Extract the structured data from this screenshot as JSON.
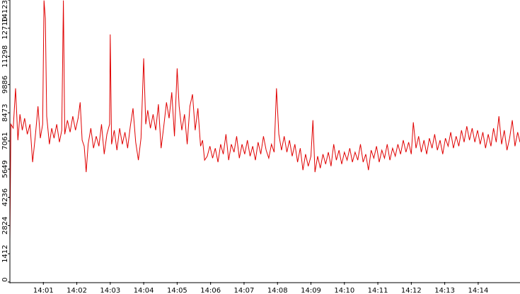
{
  "chart_data": {
    "type": "line",
    "title": "",
    "xlabel": "",
    "ylabel": "",
    "ylim": [
      0,
      14123
    ],
    "y_ticks": [
      0,
      1412,
      2824,
      4236,
      5649,
      7061,
      8473,
      9886,
      11298,
      12710,
      14123
    ],
    "y_tick_labels": [
      "0",
      "1412",
      "2824",
      "4236",
      "5649",
      "7061",
      "8473",
      "9886",
      "11298",
      "12710",
      "14123"
    ],
    "x_tick_labels": [
      "14:01",
      "14:02",
      "14:03",
      "14:04",
      "14:05",
      "14:06",
      "14:07",
      "14:08",
      "14:09",
      "14:10",
      "14:11",
      "14:12",
      "14:13",
      "14:14"
    ],
    "x_range_minutes": [
      0.0,
      15.25
    ],
    "grid": false,
    "series": [
      {
        "color": "#e00000",
        "points": [
          [
            0.0,
            2100
          ],
          [
            0.03,
            7900
          ],
          [
            0.1,
            7700
          ],
          [
            0.17,
            9700
          ],
          [
            0.24,
            7100
          ],
          [
            0.3,
            8400
          ],
          [
            0.37,
            7600
          ],
          [
            0.44,
            8200
          ],
          [
            0.52,
            7400
          ],
          [
            0.6,
            7900
          ],
          [
            0.68,
            6000
          ],
          [
            0.76,
            7300
          ],
          [
            0.84,
            8800
          ],
          [
            0.91,
            7200
          ],
          [
            0.98,
            7900
          ],
          [
            1.02,
            14100
          ],
          [
            1.06,
            13200
          ],
          [
            1.1,
            8300
          ],
          [
            1.18,
            6900
          ],
          [
            1.25,
            7700
          ],
          [
            1.32,
            7200
          ],
          [
            1.4,
            7900
          ],
          [
            1.48,
            7000
          ],
          [
            1.55,
            7600
          ],
          [
            1.6,
            14100
          ],
          [
            1.64,
            7400
          ],
          [
            1.72,
            8100
          ],
          [
            1.8,
            7500
          ],
          [
            1.88,
            8300
          ],
          [
            1.96,
            7600
          ],
          [
            2.04,
            8200
          ],
          [
            2.1,
            9000
          ],
          [
            2.16,
            7100
          ],
          [
            2.22,
            6800
          ],
          [
            2.28,
            5500
          ],
          [
            2.34,
            6900
          ],
          [
            2.42,
            7700
          ],
          [
            2.5,
            6700
          ],
          [
            2.58,
            7300
          ],
          [
            2.66,
            6800
          ],
          [
            2.74,
            7900
          ],
          [
            2.82,
            6400
          ],
          [
            2.9,
            7400
          ],
          [
            2.98,
            7900
          ],
          [
            3.0,
            12400
          ],
          [
            3.04,
            6900
          ],
          [
            3.12,
            7600
          ],
          [
            3.2,
            6600
          ],
          [
            3.28,
            7700
          ],
          [
            3.36,
            6900
          ],
          [
            3.44,
            7500
          ],
          [
            3.52,
            6700
          ],
          [
            3.6,
            7800
          ],
          [
            3.68,
            8700
          ],
          [
            3.76,
            7000
          ],
          [
            3.84,
            6100
          ],
          [
            3.92,
            7200
          ],
          [
            4.0,
            11200
          ],
          [
            4.06,
            7900
          ],
          [
            4.12,
            8600
          ],
          [
            4.2,
            7700
          ],
          [
            4.28,
            8400
          ],
          [
            4.36,
            7600
          ],
          [
            4.44,
            8900
          ],
          [
            4.52,
            6700
          ],
          [
            4.6,
            7800
          ],
          [
            4.68,
            9000
          ],
          [
            4.76,
            8200
          ],
          [
            4.84,
            9500
          ],
          [
            4.92,
            7300
          ],
          [
            5.0,
            10700
          ],
          [
            5.06,
            8800
          ],
          [
            5.14,
            7600
          ],
          [
            5.22,
            8400
          ],
          [
            5.3,
            6900
          ],
          [
            5.38,
            8800
          ],
          [
            5.46,
            9400
          ],
          [
            5.54,
            7600
          ],
          [
            5.62,
            8700
          ],
          [
            5.7,
            6800
          ],
          [
            5.76,
            7100
          ],
          [
            5.82,
            6100
          ],
          [
            5.9,
            6300
          ],
          [
            5.98,
            6800
          ],
          [
            6.06,
            6200
          ],
          [
            6.14,
            6700
          ],
          [
            6.22,
            6000
          ],
          [
            6.3,
            6900
          ],
          [
            6.38,
            6400
          ],
          [
            6.46,
            7400
          ],
          [
            6.54,
            6100
          ],
          [
            6.62,
            6900
          ],
          [
            6.7,
            6500
          ],
          [
            6.78,
            7300
          ],
          [
            6.86,
            6200
          ],
          [
            6.94,
            6900
          ],
          [
            7.02,
            6400
          ],
          [
            7.1,
            7100
          ],
          [
            7.18,
            6300
          ],
          [
            7.26,
            6800
          ],
          [
            7.34,
            6100
          ],
          [
            7.42,
            7000
          ],
          [
            7.5,
            6400
          ],
          [
            7.58,
            7300
          ],
          [
            7.66,
            6600
          ],
          [
            7.74,
            6200
          ],
          [
            7.82,
            6900
          ],
          [
            7.9,
            6500
          ],
          [
            7.97,
            9700
          ],
          [
            8.04,
            7400
          ],
          [
            8.12,
            6600
          ],
          [
            8.2,
            7300
          ],
          [
            8.28,
            6500
          ],
          [
            8.36,
            7100
          ],
          [
            8.44,
            6300
          ],
          [
            8.52,
            6900
          ],
          [
            8.6,
            6000
          ],
          [
            8.68,
            6700
          ],
          [
            8.76,
            5600
          ],
          [
            8.84,
            6400
          ],
          [
            8.92,
            5800
          ],
          [
            9.0,
            6300
          ],
          [
            9.06,
            8100
          ],
          [
            9.12,
            5500
          ],
          [
            9.2,
            6300
          ],
          [
            9.28,
            5700
          ],
          [
            9.36,
            6400
          ],
          [
            9.44,
            5900
          ],
          [
            9.52,
            6500
          ],
          [
            9.6,
            5800
          ],
          [
            9.68,
            6900
          ],
          [
            9.76,
            6100
          ],
          [
            9.84,
            6600
          ],
          [
            9.92,
            5900
          ],
          [
            10.0,
            6500
          ],
          [
            10.08,
            6100
          ],
          [
            10.16,
            6700
          ],
          [
            10.24,
            6000
          ],
          [
            10.32,
            6500
          ],
          [
            10.4,
            6100
          ],
          [
            10.48,
            6900
          ],
          [
            10.56,
            6000
          ],
          [
            10.64,
            6400
          ],
          [
            10.72,
            5600
          ],
          [
            10.8,
            6600
          ],
          [
            10.88,
            6200
          ],
          [
            10.96,
            6800
          ],
          [
            11.04,
            6000
          ],
          [
            11.12,
            6600
          ],
          [
            11.2,
            6200
          ],
          [
            11.28,
            6900
          ],
          [
            11.36,
            6100
          ],
          [
            11.44,
            6700
          ],
          [
            11.52,
            6300
          ],
          [
            11.6,
            6900
          ],
          [
            11.68,
            6400
          ],
          [
            11.76,
            7100
          ],
          [
            11.84,
            6500
          ],
          [
            11.92,
            7000
          ],
          [
            12.0,
            6400
          ],
          [
            12.06,
            8000
          ],
          [
            12.14,
            6700
          ],
          [
            12.22,
            7300
          ],
          [
            12.3,
            6500
          ],
          [
            12.38,
            7100
          ],
          [
            12.46,
            6400
          ],
          [
            12.54,
            7200
          ],
          [
            12.62,
            6700
          ],
          [
            12.7,
            7400
          ],
          [
            12.78,
            6600
          ],
          [
            12.86,
            7100
          ],
          [
            12.94,
            6400
          ],
          [
            13.02,
            7200
          ],
          [
            13.1,
            6800
          ],
          [
            13.18,
            7500
          ],
          [
            13.26,
            6700
          ],
          [
            13.34,
            7300
          ],
          [
            13.42,
            6800
          ],
          [
            13.5,
            7600
          ],
          [
            13.58,
            7000
          ],
          [
            13.66,
            7800
          ],
          [
            13.74,
            7100
          ],
          [
            13.82,
            7700
          ],
          [
            13.9,
            7000
          ],
          [
            13.98,
            7600
          ],
          [
            14.06,
            6900
          ],
          [
            14.14,
            7500
          ],
          [
            14.22,
            6700
          ],
          [
            14.3,
            7400
          ],
          [
            14.38,
            6800
          ],
          [
            14.46,
            7700
          ],
          [
            14.54,
            7000
          ],
          [
            14.62,
            8300
          ],
          [
            14.7,
            6900
          ],
          [
            14.78,
            7600
          ],
          [
            14.86,
            6600
          ],
          [
            14.94,
            7200
          ],
          [
            15.02,
            8100
          ],
          [
            15.1,
            6800
          ],
          [
            15.18,
            7500
          ],
          [
            15.25,
            7000
          ]
        ]
      }
    ]
  }
}
